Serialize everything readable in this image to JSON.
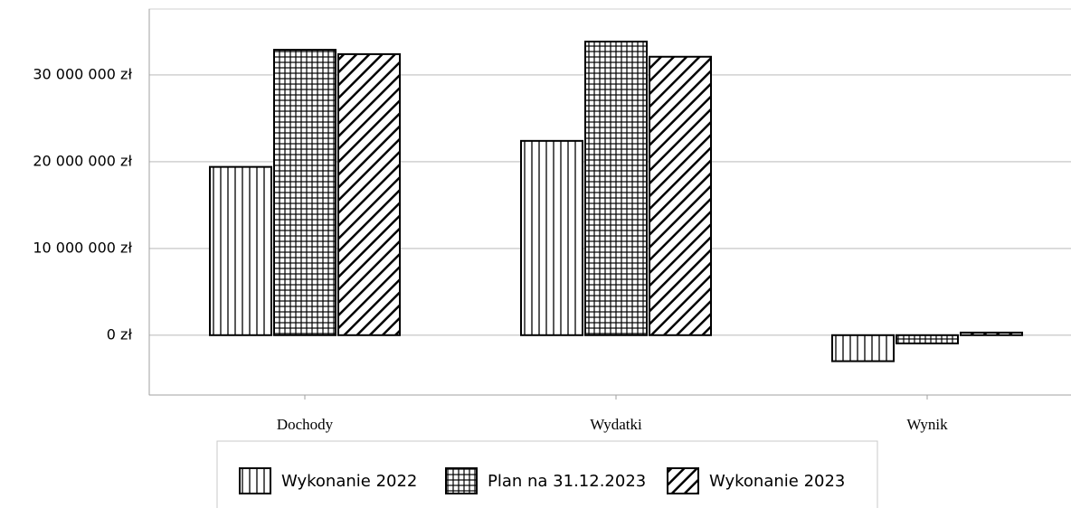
{
  "chart_data": {
    "type": "bar",
    "categories": [
      "Dochody",
      "Wydatki",
      "Wynik"
    ],
    "series": [
      {
        "name": "Wykonanie 2022",
        "color": "#000000",
        "pattern": "vertical",
        "values": [
          19400000,
          22400000,
          -3000000
        ]
      },
      {
        "name": "Plan na 31.12.2023",
        "color": "#000000",
        "pattern": "grid",
        "values": [
          32900000,
          33850000,
          -950000
        ]
      },
      {
        "name": "Wykonanie 2023",
        "color": "#000000",
        "pattern": "diagonal",
        "values": [
          32400000,
          32100000,
          300000
        ]
      }
    ],
    "ylim": [
      -6900000,
      37600000
    ],
    "yticks": [
      {
        "value": 0,
        "label": "0 zł"
      },
      {
        "value": 10000000,
        "label": "10 000 000 zł"
      },
      {
        "value": 20000000,
        "label": "20 000 000 zł"
      },
      {
        "value": 30000000,
        "label": "30 000 000 zł"
      }
    ],
    "grid": true,
    "legend": "bottom"
  }
}
